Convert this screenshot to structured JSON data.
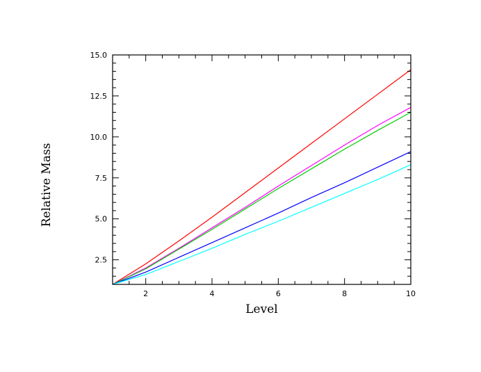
{
  "chart_data": {
    "type": "line",
    "title": "",
    "xlabel": "Level",
    "ylabel": "Relative Mass",
    "xlim": [
      1,
      10
    ],
    "ylim": [
      1,
      15
    ],
    "x_ticks": [
      2,
      4,
      6,
      8,
      10
    ],
    "y_ticks": [
      2.5,
      5.0,
      7.5,
      10.0,
      12.5,
      15.0
    ],
    "x_tick_labels": [
      "2",
      "4",
      "6",
      "8",
      "10"
    ],
    "y_tick_labels": [
      "2.5",
      "5.0",
      "7.5",
      "10.0",
      "12.5",
      "15.0"
    ],
    "legend": "none",
    "grid": false,
    "x": [
      1,
      2,
      3,
      4,
      5,
      6,
      7,
      8,
      9,
      10
    ],
    "series": [
      {
        "color": "#ff0000",
        "values": [
          1.0,
          2.25,
          3.65,
          5.1,
          6.6,
          8.1,
          9.6,
          11.1,
          12.6,
          14.1
        ]
      },
      {
        "color": "#ff00ff",
        "values": [
          1.0,
          2.0,
          3.2,
          4.45,
          5.7,
          7.0,
          8.25,
          9.5,
          10.7,
          11.8
        ]
      },
      {
        "color": "#00cc00",
        "values": [
          1.0,
          1.95,
          3.15,
          4.35,
          5.6,
          6.85,
          8.05,
          9.25,
          10.4,
          11.5
        ]
      },
      {
        "color": "#0000ff",
        "values": [
          1.0,
          1.75,
          2.65,
          3.55,
          4.45,
          5.35,
          6.3,
          7.2,
          8.15,
          9.1
        ]
      },
      {
        "color": "#00ffff",
        "values": [
          1.0,
          1.6,
          2.4,
          3.2,
          4.05,
          4.85,
          5.7,
          6.55,
          7.4,
          8.3
        ]
      }
    ]
  }
}
